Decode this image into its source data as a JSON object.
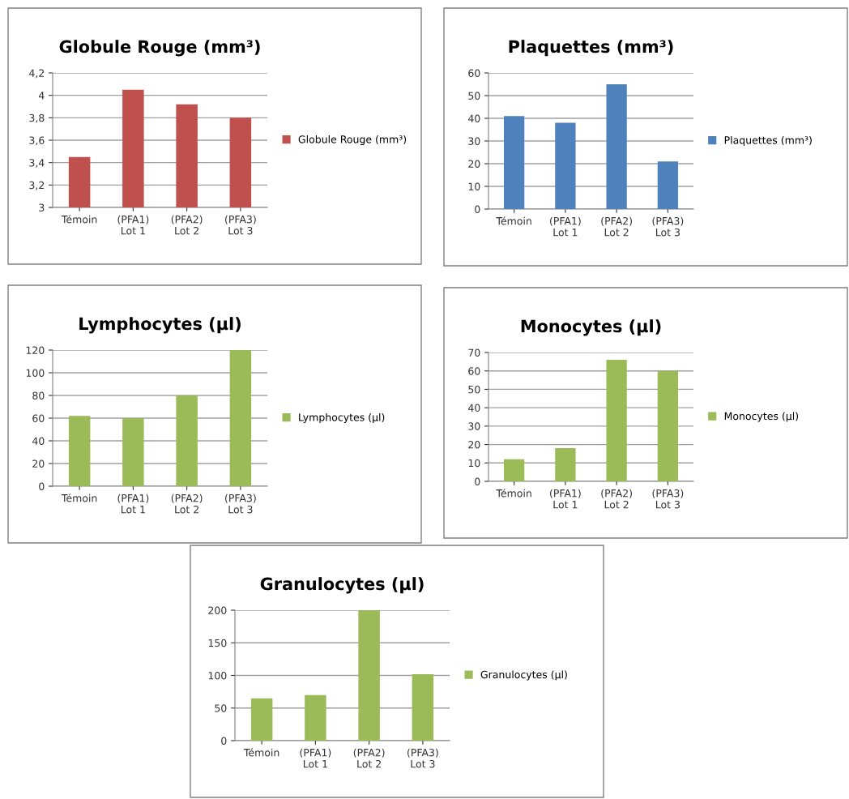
{
  "chart_data": [
    {
      "type": "bar",
      "title": "Globule Rouge (mm³)",
      "categories": [
        "Témoin",
        "(PFA1)\nLot 1",
        "(PFA2)\nLot 2",
        "(PFA3)\nLot 3"
      ],
      "series": [
        {
          "name": "Globule Rouge (mm³)",
          "color": "#c0504d",
          "values": [
            3.45,
            4.05,
            3.92,
            3.8
          ]
        }
      ],
      "ylim": [
        3,
        4.2
      ],
      "yticks": [
        3,
        {
          "value": 3.2,
          "label": "3,2"
        },
        {
          "value": 3.4,
          "label": "3,4"
        },
        {
          "value": 3.6,
          "label": "3,6"
        },
        {
          "value": 3.8,
          "label": "3,8"
        },
        4,
        {
          "value": 4.2,
          "label": "4,2"
        }
      ],
      "grid": "y",
      "legend": "right"
    },
    {
      "type": "bar",
      "title": "Plaquettes (mm³)",
      "categories": [
        "Témoin",
        "(PFA1)\nLot 1",
        "(PFA2)\nLot 2",
        "(PFA3)\nLot 3"
      ],
      "series": [
        {
          "name": "Plaquettes (mm³)",
          "color": "#4f81bd",
          "values": [
            41,
            38,
            55,
            21
          ]
        }
      ],
      "ylim": [
        0,
        60
      ],
      "yticks": [
        0,
        10,
        20,
        30,
        40,
        50,
        60
      ],
      "grid": "y",
      "legend": "right"
    },
    {
      "type": "bar",
      "title": "Lymphocytes (µl)",
      "categories": [
        "Témoin",
        "(PFA1)\nLot 1",
        "(PFA2)\nLot 2",
        "(PFA3)\nLot 3"
      ],
      "series": [
        {
          "name": "Lymphocytes (µl)",
          "color": "#9bbb59",
          "values": [
            62,
            60,
            80,
            120
          ]
        }
      ],
      "ylim": [
        0,
        120
      ],
      "yticks": [
        0,
        20,
        40,
        60,
        80,
        100,
        120
      ],
      "grid": "y",
      "legend": "right"
    },
    {
      "type": "bar",
      "title": "Monocytes (µl)",
      "categories": [
        "Témoin",
        "(PFA1)\nLot 1",
        "(PFA2)\nLot 2",
        "(PFA3)\nLot 3"
      ],
      "series": [
        {
          "name": "Monocytes (µl)",
          "color": "#9bbb59",
          "values": [
            12,
            18,
            66,
            60
          ]
        }
      ],
      "ylim": [
        0,
        70
      ],
      "yticks": [
        0,
        10,
        20,
        30,
        40,
        50,
        60,
        70
      ],
      "grid": "y",
      "legend": "right"
    },
    {
      "type": "bar",
      "title": "Granulocytes (µl)",
      "categories": [
        "Témoin",
        "(PFA1)\nLot 1",
        "(PFA2)\nLot 2",
        "(PFA3)\nLot 3"
      ],
      "series": [
        {
          "name": "Granulocytes (µl)",
          "color": "#9bbb59",
          "values": [
            65,
            70,
            200,
            102
          ]
        }
      ],
      "ylim": [
        0,
        200
      ],
      "yticks": [
        0,
        50,
        100,
        150,
        200
      ],
      "grid": "y",
      "legend": "right"
    }
  ]
}
